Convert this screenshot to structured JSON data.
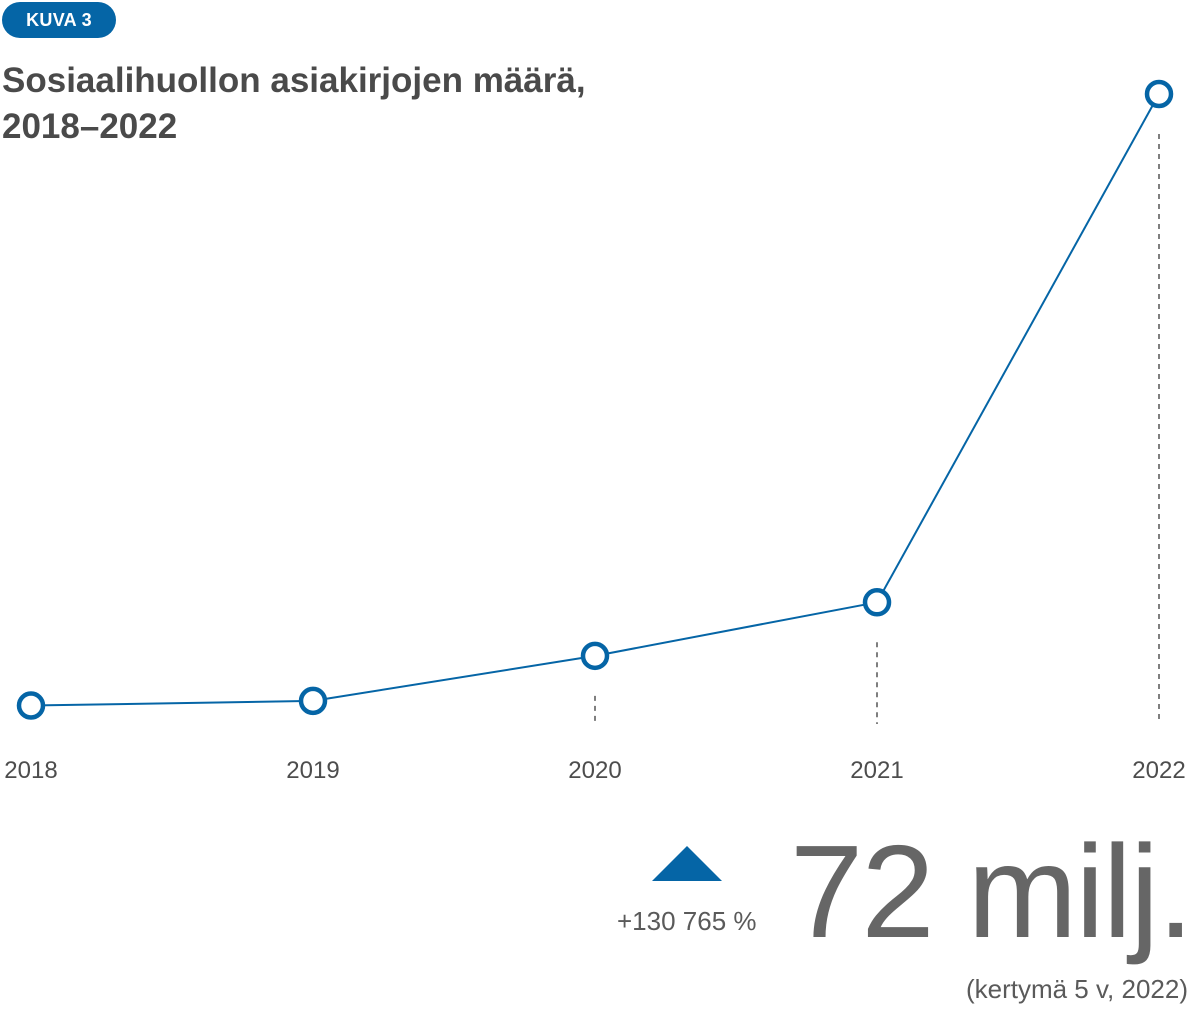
{
  "badge": {
    "label": "KUVA 3"
  },
  "title": {
    "line1": "Sosiaalihuollon asiakirjojen määrä,",
    "line2": "2018–2022"
  },
  "colors": {
    "accent": "#0565a6",
    "text": "#4a4a4a",
    "muted": "#666666"
  },
  "kpi": {
    "change": "+130 765 %",
    "value": "72 milj.",
    "note": "(kertymä 5 v, 2022)",
    "direction": "up-arrow-icon"
  },
  "chart_data": {
    "type": "line",
    "title": "Sosiaalihuollon asiakirjojen määrä, 2018–2022",
    "xlabel": "",
    "ylabel": "",
    "categories": [
      "2018",
      "2019",
      "2020",
      "2021",
      "2022"
    ],
    "series": [
      {
        "values": [
          0.055,
          0.6,
          5.9,
          12.2,
          72
        ]
      }
    ],
    "ylim": [
      0,
      72
    ],
    "grid": false,
    "dashed_guides": [
      "2020",
      "2021",
      "2022"
    ],
    "legend": "none",
    "line_color": "#0565a6",
    "marker": "hollow-circle"
  }
}
